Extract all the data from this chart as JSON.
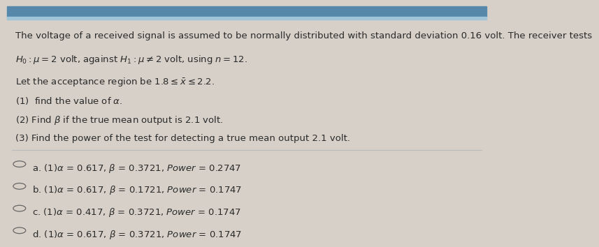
{
  "outer_bg": "#d6d0c8",
  "inner_bg": "#eeece8",
  "top_bar_color": "#7aafc0",
  "top_bar_thin_color": "#a0c4d8",
  "title_line1": "The voltage of a received signal is assumed to be normally distributed with standard deviation 0.16 volt. The receiver tests",
  "title_line2": "$H_0 : \\mu = 2$ volt, against $H_1 : \\mu \\neq 2$ volt, using $n = 12$.",
  "acceptance_line": "Let the acceptance region be $1.8 \\leq \\bar{x} \\leq 2.2$.",
  "q1": "(1)  find the value of $\\alpha$.",
  "q2": "(2) Find $\\beta$ if the true mean output is 2.1 volt.",
  "q3": "(3) Find the power of the test for detecting a true mean output 2.1 volt.",
  "options": [
    "a. (1)$\\alpha$ = 0.617, $\\beta$ = 0.3721, $Power$ = 0.2747",
    "b. (1)$\\alpha$ = 0.617, $\\beta$ = 0.1721, $Power$ = 0.1747",
    "c. (1)$\\alpha$ = 0.417, $\\beta$ = 0.3721, $Power$ = 0.1747",
    "d. (1)$\\alpha$ = 0.617, $\\beta$ = 0.3721, $Power$ = 0.1747"
  ],
  "text_color": "#2a2a2a",
  "option_fontsize": 9.5,
  "question_fontsize": 9.5,
  "circle_color": "#666666",
  "divider_color": "#bbbbbb",
  "top_stripe_color": "#5588aa"
}
